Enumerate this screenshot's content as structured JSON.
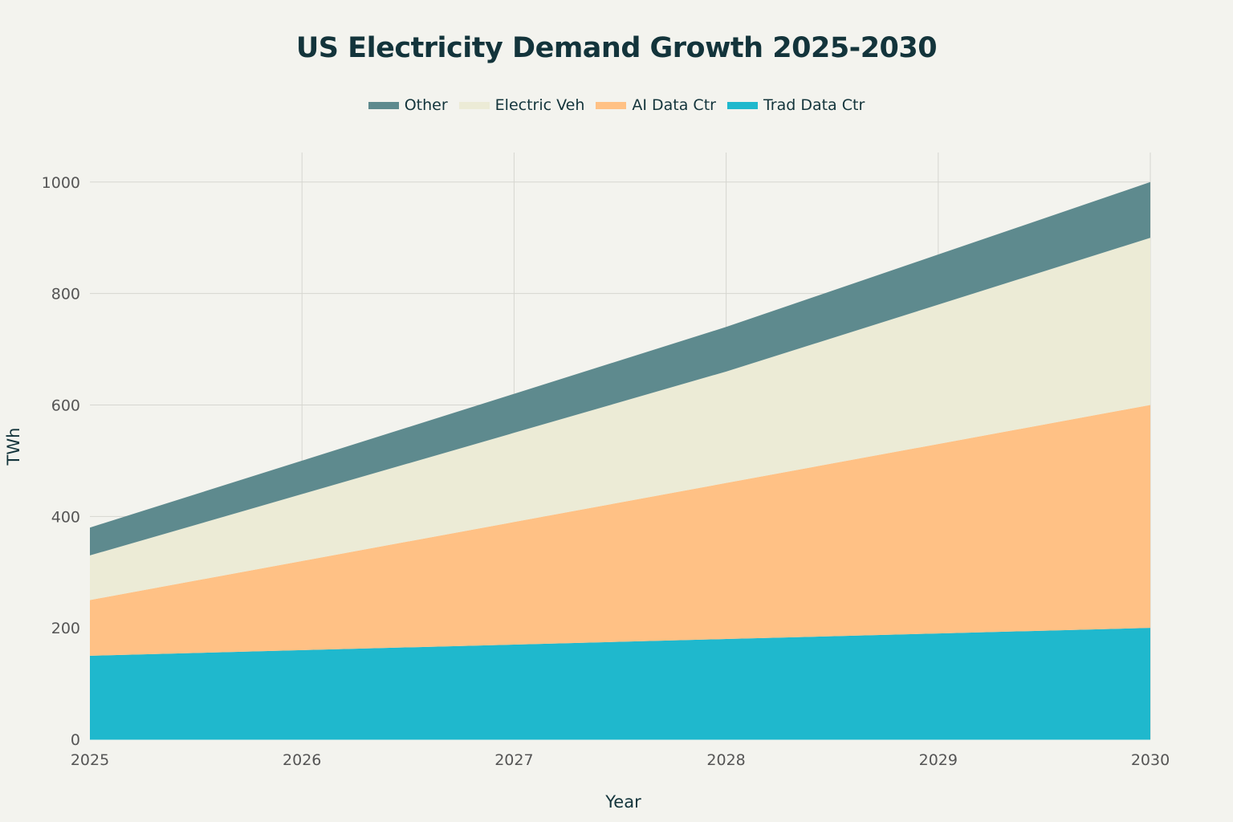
{
  "chart_data": {
    "type": "area",
    "stacked": true,
    "title": "US Electricity Demand Growth 2025-2030",
    "xlabel": "Year",
    "ylabel": "TWh",
    "x": [
      2025,
      2026,
      2027,
      2028,
      2029,
      2030
    ],
    "x_tick_labels": [
      "2025",
      "2026",
      "2027",
      "2028",
      "2029",
      "2030"
    ],
    "y_ticks": [
      0,
      200,
      400,
      600,
      800,
      1000
    ],
    "ylim": [
      0,
      1053
    ],
    "grid": true,
    "legend_placement": "top-center",
    "legend_order": [
      "Other",
      "Electric Veh",
      "AI Data Ctr",
      "Trad Data Ctr"
    ],
    "series": [
      {
        "name": "Trad Data Ctr",
        "color": "#1fb8cd",
        "values": [
          150,
          160,
          170,
          180,
          190,
          200
        ]
      },
      {
        "name": "AI Data Ctr",
        "color": "#ffc185",
        "values": [
          100,
          160,
          220,
          280,
          340,
          400
        ]
      },
      {
        "name": "Electric Veh",
        "color": "#ecebd6",
        "values": [
          80,
          120,
          160,
          200,
          250,
          300
        ]
      },
      {
        "name": "Other",
        "color": "#5e8a8e",
        "values": [
          50,
          60,
          70,
          80,
          90,
          100
        ]
      }
    ]
  }
}
